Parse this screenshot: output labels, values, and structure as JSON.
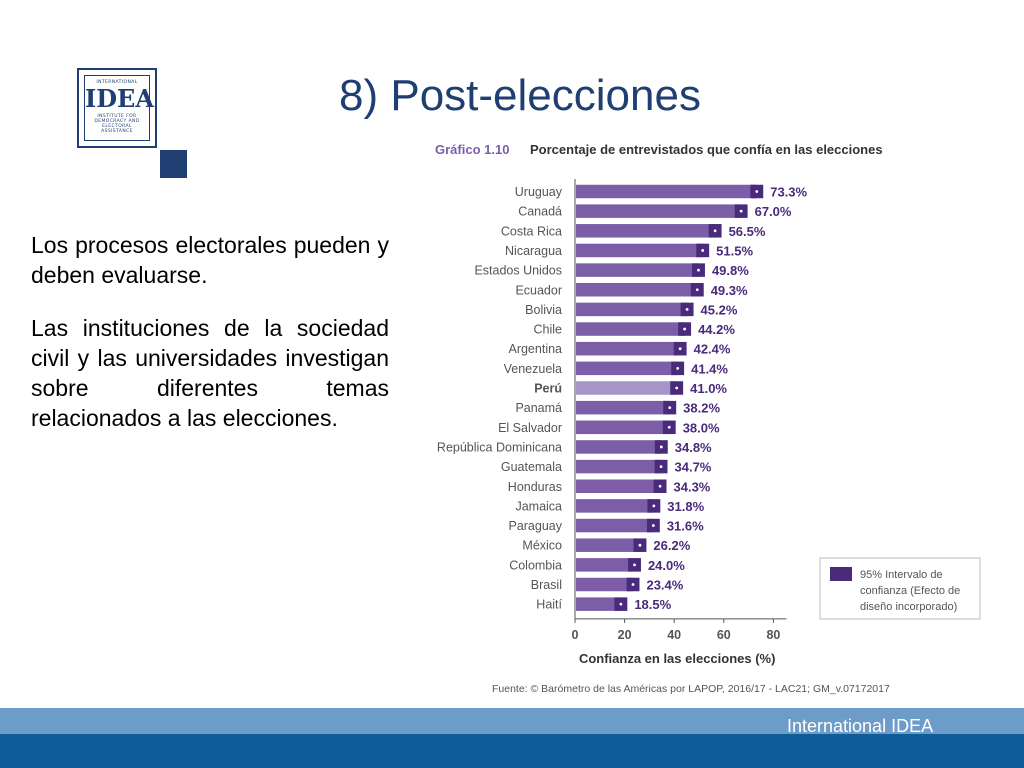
{
  "slide": {
    "title": "8) Post-elecciones",
    "paragraphs": [
      "Los procesos electorales pueden y deben evaluarse.",
      "Las instituciones de la sociedad civil y las universidades investigan sobre diferentes temas relacionados a las elecciones."
    ],
    "footer": "International IDEA"
  },
  "logo": {
    "line1": "INTERNATIONAL",
    "main": "IDEA",
    "line3": [
      "INSTITUTE FOR",
      "DEMOCRACY AND",
      "ELECTORAL",
      "ASSISTANCE"
    ]
  },
  "colors": {
    "accent": "#1f3f73",
    "bar": "#7b5ea7",
    "bar_highlight": "#a895c8",
    "ci": "#4a2a7a",
    "label": "#555555",
    "footer_light": "#6e9cc8",
    "footer_dark": "#0f5c99"
  },
  "chart_data": {
    "type": "bar",
    "orientation": "horizontal",
    "title_prefix": "Gráfico 1.10",
    "title": "Porcentaje de entrevistados que confía en las elecciones",
    "xlabel": "Confianza en las elecciones (%)",
    "ylabel": "",
    "xlim": [
      0,
      80
    ],
    "xticks": [
      0,
      20,
      40,
      60,
      80
    ],
    "highlight": "Perú",
    "categories": [
      "Uruguay",
      "Canadá",
      "Costa Rica",
      "Nicaragua",
      "Estados Unidos",
      "Ecuador",
      "Bolivia",
      "Chile",
      "Argentina",
      "Venezuela",
      "Perú",
      "Panamá",
      "El Salvador",
      "República Dominicana",
      "Guatemala",
      "Honduras",
      "Jamaica",
      "Paraguay",
      "México",
      "Colombia",
      "Brasil",
      "Haití"
    ],
    "values": [
      73.3,
      67.0,
      56.5,
      51.5,
      49.8,
      49.3,
      45.2,
      44.2,
      42.4,
      41.4,
      41.0,
      38.2,
      38.0,
      34.8,
      34.7,
      34.3,
      31.8,
      31.6,
      26.2,
      24.0,
      23.4,
      18.5
    ],
    "value_labels": [
      "73.3%",
      "67.0%",
      "56.5%",
      "51.5%",
      "49.8%",
      "49.3%",
      "45.2%",
      "44.2%",
      "42.4%",
      "41.4%",
      "41.0%",
      "38.2%",
      "38.0%",
      "34.8%",
      "34.7%",
      "34.3%",
      "31.8%",
      "31.6%",
      "26.2%",
      "24.0%",
      "23.4%",
      "18.5%"
    ],
    "ci_halfwidth": 2.6,
    "legend": {
      "placement": "right",
      "label_lines": [
        "95% Intervalo de",
        "confianza (Efecto de",
        "diseño incorporado)"
      ]
    },
    "source": "Fuente: © Barómetro de las Américas por LAPOP, 2016/17 - LAC21; GM_v.07172017",
    "grid": false
  }
}
